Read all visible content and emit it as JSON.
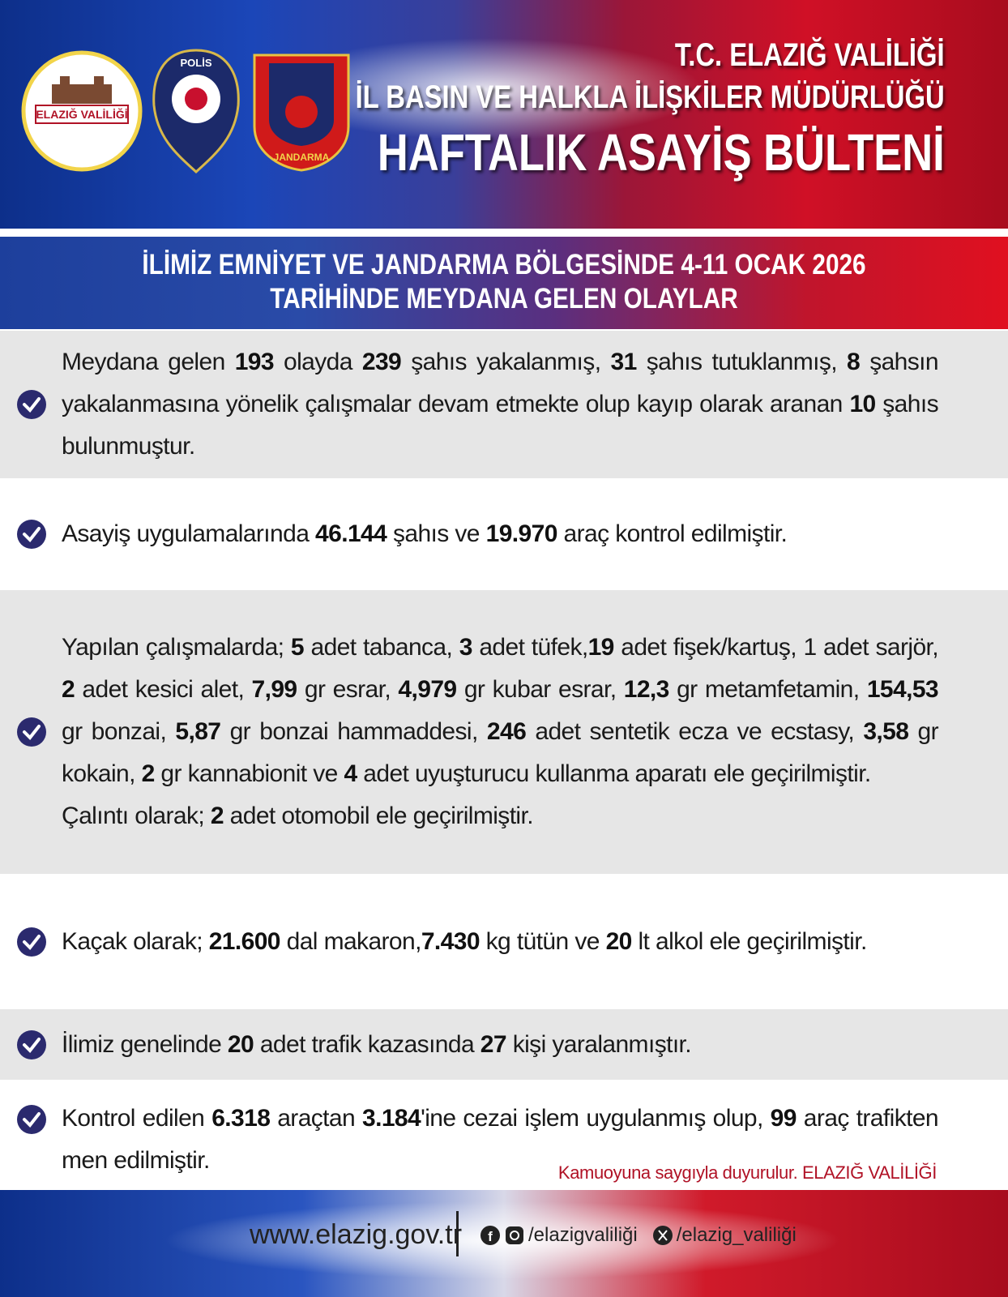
{
  "header": {
    "lines": [
      "T.C. ELAZIĞ VALİLİĞİ",
      "İL BASIN VE HALKLA İLİŞKİLER MÜDÜRLÜĞÜ",
      "HAFTALIK ASAYİŞ BÜLTENİ"
    ],
    "logos": {
      "valilik": "ELAZIĞ VALİLİĞİ",
      "police": "POLİS",
      "gendarmerie": "JANDARMA"
    }
  },
  "banner": [
    "İLİMİZ EMNİYET VE JANDARMA BÖLGESİNDE 4-11 OCAK 2026",
    "TARİHİNDE MEYDANA GELEN OLAYLAR"
  ],
  "items": [
    {
      "paragraphs": [
        [
          {
            "text": "Meydana gelen "
          },
          {
            "text": "193",
            "bold": true
          },
          {
            "text": " olayda "
          },
          {
            "text": "239",
            "bold": true
          },
          {
            "text": " şahıs yakalanmış, "
          },
          {
            "text": "31",
            "bold": true
          },
          {
            "text": " şahıs tutuklanmış, "
          },
          {
            "text": "8",
            "bold": true
          },
          {
            "text": " şahsın yakalanmasına yönelik çalışmalar devam etmekte olup kayıp olarak aranan "
          },
          {
            "text": "10",
            "bold": true
          },
          {
            "text": " şahıs bulunmuştur."
          }
        ]
      ]
    },
    {
      "paragraphs": [
        [
          {
            "text": "Asayiş uygulamalarında "
          },
          {
            "text": "46.144",
            "bold": true
          },
          {
            "text": " şahıs ve "
          },
          {
            "text": "19.970",
            "bold": true
          },
          {
            "text": " araç kontrol edilmiştir."
          }
        ]
      ]
    },
    {
      "paragraphs": [
        [
          {
            "text": "Yapılan çalışmalarda; "
          },
          {
            "text": "5",
            "bold": true
          },
          {
            "text": " adet tabanca, "
          },
          {
            "text": "3",
            "bold": true
          },
          {
            "text": " adet tüfek,"
          },
          {
            "text": "19",
            "bold": true
          },
          {
            "text": " adet fişek/kartuş, 1 adet sarjör, "
          },
          {
            "text": "2",
            "bold": true
          },
          {
            "text": " adet kesici alet, "
          },
          {
            "text": "7,99",
            "bold": true
          },
          {
            "text": " gr esrar, "
          },
          {
            "text": "4,979",
            "bold": true
          },
          {
            "text": " gr kubar esrar, "
          },
          {
            "text": "12,3",
            "bold": true
          },
          {
            "text": " gr metamfetamin, "
          },
          {
            "text": "154,53",
            "bold": true
          },
          {
            "text": " gr bonzai, "
          },
          {
            "text": "5,87",
            "bold": true
          },
          {
            "text": " gr bonzai hammaddesi, "
          },
          {
            "text": "246",
            "bold": true
          },
          {
            "text": " adet sentetik ecza ve ecstasy, "
          },
          {
            "text": "3,58",
            "bold": true
          },
          {
            "text": " gr kokain, "
          },
          {
            "text": "2",
            "bold": true
          },
          {
            "text": " gr kannabionit ve "
          },
          {
            "text": "4",
            "bold": true
          },
          {
            "text": " adet uyuşturucu kullanma aparatı ele geçirilmiştir."
          }
        ],
        [
          {
            "text": "Çalıntı olarak; "
          },
          {
            "text": "2",
            "bold": true
          },
          {
            "text": " adet otomobil ele geçirilmiştir."
          }
        ]
      ]
    },
    {
      "paragraphs": [
        [
          {
            "text": "Kaçak olarak; "
          },
          {
            "text": "21.600",
            "bold": true
          },
          {
            "text": " dal makaron,"
          },
          {
            "text": "7.430",
            "bold": true
          },
          {
            "text": " kg tütün ve "
          },
          {
            "text": "20",
            "bold": true
          },
          {
            "text": " lt alkol ele geçirilmiştir."
          }
        ]
      ]
    },
    {
      "paragraphs": [
        [
          {
            "text": "İlimiz genelinde "
          },
          {
            "text": "20",
            "bold": true
          },
          {
            "text": " adet trafik kazasında "
          },
          {
            "text": "27",
            "bold": true
          },
          {
            "text": " kişi yaralanmıştır."
          }
        ]
      ]
    },
    {
      "paragraphs": [
        [
          {
            "text": "Kontrol edilen "
          },
          {
            "text": "6.318",
            "bold": true
          },
          {
            "text": " araçtan "
          },
          {
            "text": "3.184",
            "bold": true
          },
          {
            "text": "'ine cezai işlem uygulanmış olup, "
          },
          {
            "text": "99",
            "bold": true
          },
          {
            "text": " araç trafikten men edilmiştir."
          }
        ]
      ]
    }
  ],
  "closing": "Kamuoyuna saygıyla duyurulur. ELAZIĞ VALİLİĞİ",
  "footer": {
    "website": "www.elazig.gov.tr",
    "facebook_instagram": "/elazigvaliliği",
    "x": "/elazig_valiliği"
  }
}
